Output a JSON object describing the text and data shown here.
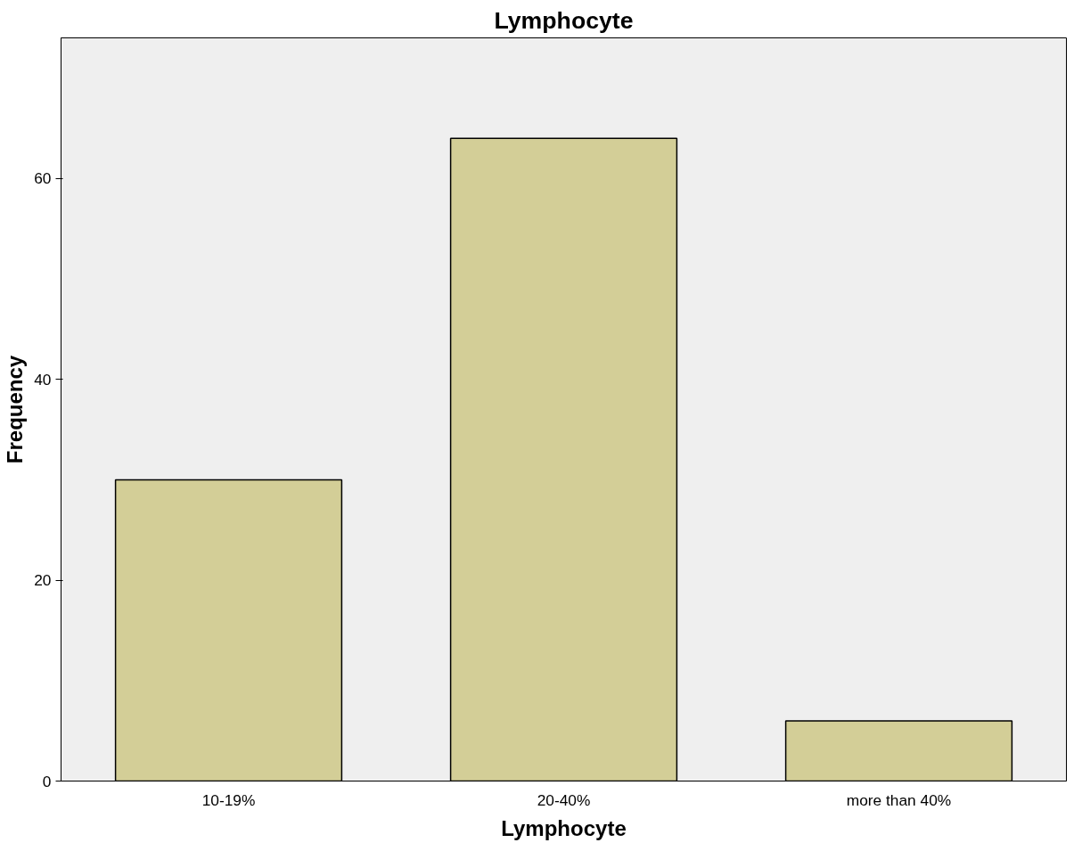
{
  "chart_data": {
    "type": "bar",
    "title": "Lymphocyte",
    "xlabel": "Lymphocyte",
    "ylabel": "Frequency",
    "categories": [
      "10-19%",
      "20-40%",
      "more than 40%"
    ],
    "values": [
      30,
      64,
      6
    ],
    "color": "#d3ce97",
    "ylim": [
      0,
      74
    ],
    "yticks": [
      0,
      20,
      40,
      60
    ],
    "grid": false
  }
}
